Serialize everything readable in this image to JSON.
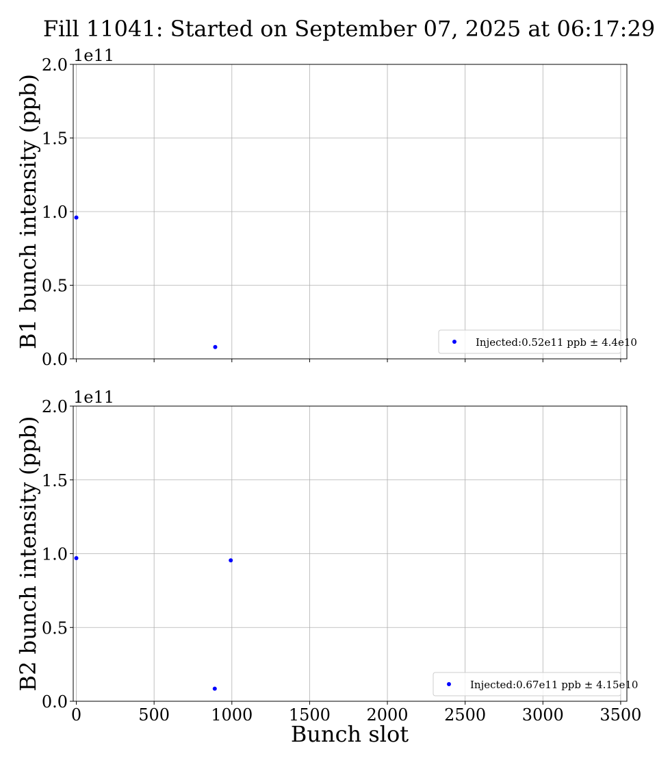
{
  "title": "Fill 11041: Started on September 07, 2025 at 06:17:29",
  "xlabel": "Bunch slot",
  "colors": {
    "marker": "#0000ff",
    "grid": "#b0b0b0",
    "axes": "#000000",
    "legend_border": "#cccccc"
  },
  "chart_data": [
    {
      "type": "scatter",
      "ylabel": "B1 bunch intensity (ppb)",
      "y_offset_label": "1e11",
      "xlim": [
        -20,
        3540
      ],
      "ylim": [
        0,
        2.0
      ],
      "x_ticks": [
        0,
        500,
        1000,
        1500,
        2000,
        2500,
        3000,
        3500
      ],
      "x_tick_labels_visible": false,
      "y_ticks": [
        0.0,
        0.5,
        1.0,
        1.5,
        2.0
      ],
      "y_tick_labels": [
        "0.0",
        "0.5",
        "1.0",
        "1.5",
        "2.0"
      ],
      "grid": true,
      "legend_position": "lower-right",
      "series": [
        {
          "name": "Injected:0.52e11 ppb ± 4.4e10",
          "points": [
            {
              "x": 0,
              "y": 0.96
            },
            {
              "x": 893,
              "y": 0.08
            }
          ]
        }
      ]
    },
    {
      "type": "scatter",
      "ylabel": "B2 bunch intensity (ppb)",
      "y_offset_label": "1e11",
      "xlim": [
        -20,
        3540
      ],
      "ylim": [
        0,
        2.0
      ],
      "x_ticks": [
        0,
        500,
        1000,
        1500,
        2000,
        2500,
        3000,
        3500
      ],
      "x_tick_labels": [
        "0",
        "500",
        "1000",
        "1500",
        "2000",
        "2500",
        "3000",
        "3500"
      ],
      "x_tick_labels_visible": true,
      "y_ticks": [
        0.0,
        0.5,
        1.0,
        1.5,
        2.0
      ],
      "y_tick_labels": [
        "0.0",
        "0.5",
        "1.0",
        "1.5",
        "2.0"
      ],
      "grid": true,
      "legend_position": "lower-right",
      "series": [
        {
          "name": "Injected:0.67e11 ppb ± 4.15e10",
          "points": [
            {
              "x": 0,
              "y": 0.97
            },
            {
              "x": 890,
              "y": 0.085
            },
            {
              "x": 993,
              "y": 0.955
            }
          ]
        }
      ]
    }
  ]
}
